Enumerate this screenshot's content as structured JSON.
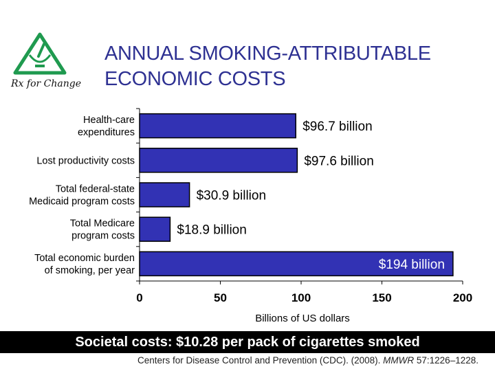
{
  "slide": {
    "title_lines": [
      "ANNUAL SMOKING-ATTRIBUTABLE",
      "ECONOMIC COSTS"
    ],
    "title_color": "#2e3192",
    "logo": {
      "text": "Rx for Change",
      "icon": "mortar-pestle-logo-icon",
      "color": "#1f9a4f"
    },
    "banner": "Societal costs: $10.28 per pack of cigarettes smoked",
    "citation": {
      "prefix": "Centers for Disease Control and Prevention (CDC). (2008). ",
      "journal": "MMWR",
      "suffix": " 57:1226–1228."
    }
  },
  "chart_data": {
    "type": "bar",
    "orientation": "horizontal",
    "categories": [
      [
        "Health-care",
        "expenditures"
      ],
      [
        "Lost productivity costs"
      ],
      [
        "Total federal-state",
        "Medicaid program costs"
      ],
      [
        "Total Medicare",
        "program costs"
      ],
      [
        "Total economic burden",
        "of smoking, per year"
      ]
    ],
    "values": [
      96.7,
      97.6,
      30.9,
      18.9,
      194
    ],
    "data_labels": [
      "$96.7 billion",
      "$97.6 billion",
      "$30.9 billion",
      "$18.9 billion",
      "$194 billion"
    ],
    "xlabel": "Billions of US dollars",
    "xlim": [
      0,
      200
    ],
    "xticks": [
      0,
      50,
      100,
      150,
      200
    ],
    "grid": false,
    "bar_color": "#3232b4",
    "bar_stroke": "#000000"
  }
}
